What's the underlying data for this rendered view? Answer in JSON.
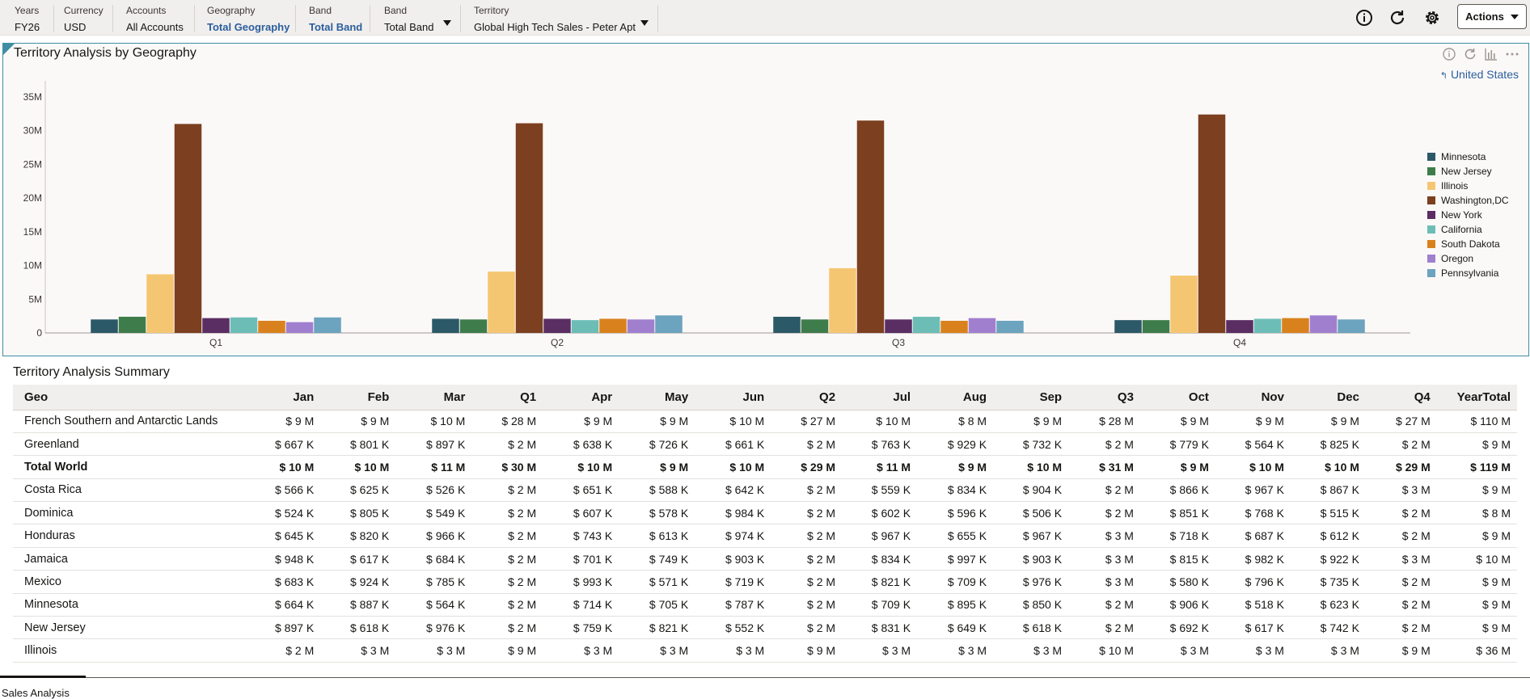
{
  "pov": [
    {
      "label": "Years",
      "value": "FY26",
      "link": false
    },
    {
      "label": "Currency",
      "value": "USD",
      "link": false
    },
    {
      "label": "Accounts",
      "value": "All Accounts",
      "link": false
    },
    {
      "label": "Geography",
      "value": "Total Geography",
      "link": true
    },
    {
      "label": "Band",
      "value": "Total Band",
      "link": true
    },
    {
      "label": "Band",
      "value": "Total Band",
      "link": false
    },
    {
      "label": "Territory",
      "value": "Global High Tech Sales - Peter Apt",
      "link": false
    }
  ],
  "toolbar": {
    "actions_label": "Actions"
  },
  "chart_panel": {
    "title": "Territory Analysis by Geography",
    "drill_label": "United States",
    "drill_glyph": "↰"
  },
  "chart_data": {
    "type": "bar",
    "categories": [
      "Q1",
      "Q2",
      "Q3",
      "Q4"
    ],
    "y_ticks": [
      "0",
      "5M",
      "10M",
      "15M",
      "20M",
      "25M",
      "30M",
      "35M"
    ],
    "ylim": [
      0,
      35000000
    ],
    "legend_position": "right",
    "series": [
      {
        "name": "Minnesota",
        "color": "#2c5967",
        "values": [
          2000000,
          2100000,
          2400000,
          1900000
        ]
      },
      {
        "name": "New Jersey",
        "color": "#3e7d4b",
        "values": [
          2400000,
          2000000,
          2000000,
          1900000
        ]
      },
      {
        "name": "Illinois",
        "color": "#f5c671",
        "values": [
          8700000,
          9100000,
          9600000,
          8500000
        ]
      },
      {
        "name": "Washington,DC",
        "color": "#7c3f1f",
        "values": [
          31000000,
          31100000,
          31500000,
          32400000
        ]
      },
      {
        "name": "New York",
        "color": "#5a2e63",
        "values": [
          2200000,
          2100000,
          2000000,
          1900000
        ]
      },
      {
        "name": "California",
        "color": "#6dbdb7",
        "values": [
          2300000,
          1900000,
          2400000,
          2100000
        ]
      },
      {
        "name": "South Dakota",
        "color": "#d9821d",
        "values": [
          1800000,
          2100000,
          1800000,
          2200000
        ]
      },
      {
        "name": "Oregon",
        "color": "#a17fcf",
        "values": [
          1600000,
          2000000,
          2200000,
          2600000
        ]
      },
      {
        "name": "Pennsylvania",
        "color": "#6ca3be",
        "values": [
          2300000,
          2600000,
          1800000,
          2000000
        ]
      }
    ]
  },
  "summary": {
    "title": "Territory Analysis Summary",
    "columns": [
      "Geo",
      "Jan",
      "Feb",
      "Mar",
      "Q1",
      "Apr",
      "May",
      "Jun",
      "Q2",
      "Jul",
      "Aug",
      "Sep",
      "Q3",
      "Oct",
      "Nov",
      "Dec",
      "Q4",
      "YearTotal"
    ],
    "rows": [
      {
        "bold": false,
        "cells": [
          "French Southern and Antarctic Lands",
          "$ 9 M",
          "$ 9 M",
          "$ 10 M",
          "$ 28 M",
          "$ 9 M",
          "$ 9 M",
          "$ 10 M",
          "$ 27 M",
          "$ 10 M",
          "$ 8 M",
          "$ 9 M",
          "$ 28 M",
          "$ 9 M",
          "$ 9 M",
          "$ 9 M",
          "$ 27 M",
          "$ 110 M"
        ]
      },
      {
        "bold": false,
        "cells": [
          "Greenland",
          "$ 667 K",
          "$ 801 K",
          "$ 897 K",
          "$ 2 M",
          "$ 638 K",
          "$ 726 K",
          "$ 661 K",
          "$ 2 M",
          "$ 763 K",
          "$ 929 K",
          "$ 732 K",
          "$ 2 M",
          "$ 779 K",
          "$ 564 K",
          "$ 825 K",
          "$ 2 M",
          "$ 9 M"
        ]
      },
      {
        "bold": true,
        "cells": [
          "Total World",
          "$ 10 M",
          "$ 10 M",
          "$ 11 M",
          "$ 30 M",
          "$ 10 M",
          "$ 9 M",
          "$ 10 M",
          "$ 29 M",
          "$ 11 M",
          "$ 9 M",
          "$ 10 M",
          "$ 31 M",
          "$ 9 M",
          "$ 10 M",
          "$ 10 M",
          "$ 29 M",
          "$ 119 M"
        ]
      },
      {
        "bold": false,
        "cells": [
          "Costa Rica",
          "$ 566 K",
          "$ 625 K",
          "$ 526 K",
          "$ 2 M",
          "$ 651 K",
          "$ 588 K",
          "$ 642 K",
          "$ 2 M",
          "$ 559 K",
          "$ 834 K",
          "$ 904 K",
          "$ 2 M",
          "$ 866 K",
          "$ 967 K",
          "$ 867 K",
          "$ 3 M",
          "$ 9 M"
        ]
      },
      {
        "bold": false,
        "cells": [
          "Dominica",
          "$ 524 K",
          "$ 805 K",
          "$ 549 K",
          "$ 2 M",
          "$ 607 K",
          "$ 578 K",
          "$ 984 K",
          "$ 2 M",
          "$ 602 K",
          "$ 596 K",
          "$ 506 K",
          "$ 2 M",
          "$ 851 K",
          "$ 768 K",
          "$ 515 K",
          "$ 2 M",
          "$ 8 M"
        ]
      },
      {
        "bold": false,
        "cells": [
          "Honduras",
          "$ 645 K",
          "$ 820 K",
          "$ 966 K",
          "$ 2 M",
          "$ 743 K",
          "$ 613 K",
          "$ 974 K",
          "$ 2 M",
          "$ 967 K",
          "$ 655 K",
          "$ 967 K",
          "$ 3 M",
          "$ 718 K",
          "$ 687 K",
          "$ 612 K",
          "$ 2 M",
          "$ 9 M"
        ]
      },
      {
        "bold": false,
        "cells": [
          "Jamaica",
          "$ 948 K",
          "$ 617 K",
          "$ 684 K",
          "$ 2 M",
          "$ 701 K",
          "$ 749 K",
          "$ 903 K",
          "$ 2 M",
          "$ 834 K",
          "$ 997 K",
          "$ 903 K",
          "$ 3 M",
          "$ 815 K",
          "$ 982 K",
          "$ 922 K",
          "$ 3 M",
          "$ 10 M"
        ]
      },
      {
        "bold": false,
        "cells": [
          "Mexico",
          "$ 683 K",
          "$ 924 K",
          "$ 785 K",
          "$ 2 M",
          "$ 993 K",
          "$ 571 K",
          "$ 719 K",
          "$ 2 M",
          "$ 821 K",
          "$ 709 K",
          "$ 976 K",
          "$ 3 M",
          "$ 580 K",
          "$ 796 K",
          "$ 735 K",
          "$ 2 M",
          "$ 9 M"
        ]
      },
      {
        "bold": false,
        "cells": [
          "Minnesota",
          "$ 664 K",
          "$ 887 K",
          "$ 564 K",
          "$ 2 M",
          "$ 714 K",
          "$ 705 K",
          "$ 787 K",
          "$ 2 M",
          "$ 709 K",
          "$ 895 K",
          "$ 850 K",
          "$ 2 M",
          "$ 906 K",
          "$ 518 K",
          "$ 623 K",
          "$ 2 M",
          "$ 9 M"
        ]
      },
      {
        "bold": false,
        "cells": [
          "New Jersey",
          "$ 897 K",
          "$ 618 K",
          "$ 976 K",
          "$ 2 M",
          "$ 759 K",
          "$ 821 K",
          "$ 552 K",
          "$ 2 M",
          "$ 831 K",
          "$ 649 K",
          "$ 618 K",
          "$ 2 M",
          "$ 692 K",
          "$ 617 K",
          "$ 742 K",
          "$ 2 M",
          "$ 9 M"
        ]
      },
      {
        "bold": false,
        "cells": [
          "Illinois",
          "$ 2 M",
          "$ 3 M",
          "$ 3 M",
          "$ 9 M",
          "$ 3 M",
          "$ 3 M",
          "$ 3 M",
          "$ 9 M",
          "$ 3 M",
          "$ 3 M",
          "$ 3 M",
          "$ 10 M",
          "$ 3 M",
          "$ 3 M",
          "$ 3 M",
          "$ 9 M",
          "$ 36 M"
        ]
      }
    ]
  },
  "footer": {
    "tab_label": "Sales Analysis"
  },
  "icons": [
    "info-icon",
    "refresh-icon",
    "settings-icon",
    "chart-type-icon",
    "more-icon"
  ]
}
